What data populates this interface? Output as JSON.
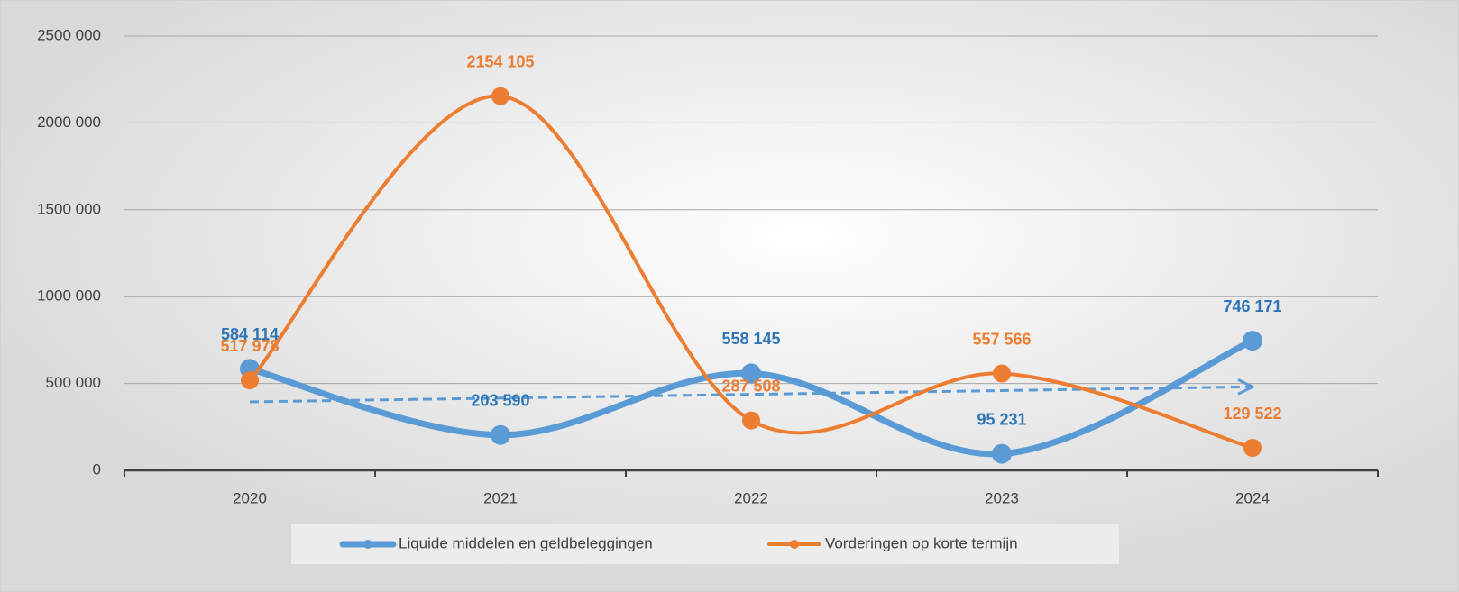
{
  "chart_data": {
    "type": "line",
    "categories": [
      "2020",
      "2021",
      "2022",
      "2023",
      "2024"
    ],
    "series": [
      {
        "name": "Liquide middelen en geldbeleggingen",
        "color": "#5b9bd5",
        "label_color": "#2e75b6",
        "values": [
          584114,
          203590,
          558145,
          95231,
          746171
        ],
        "value_labels": [
          "584 114",
          "203 590",
          "558 145",
          "95 231",
          "746 171"
        ],
        "trendline": true
      },
      {
        "name": "Vorderingen op korte termijn",
        "color": "#ed7d31",
        "label_color": "#ed7d31",
        "values": [
          517978,
          2154105,
          287508,
          557566,
          129522
        ],
        "value_labels": [
          "517 978",
          "2154 105",
          "287 508",
          "557 566",
          "129 522"
        ]
      }
    ],
    "ylim": [
      0,
      2500000
    ],
    "yticks": [
      0,
      {
        "value": 500000,
        "label": "500 000"
      },
      {
        "value": 1000000,
        "label": "1000 000"
      },
      {
        "value": 1500000,
        "label": "1500 000"
      },
      {
        "value": 2000000,
        "label": "2000 000"
      },
      {
        "value": 2500000,
        "label": "2500 000"
      }
    ],
    "grid": true,
    "smooth": true,
    "legend": "bottom"
  }
}
